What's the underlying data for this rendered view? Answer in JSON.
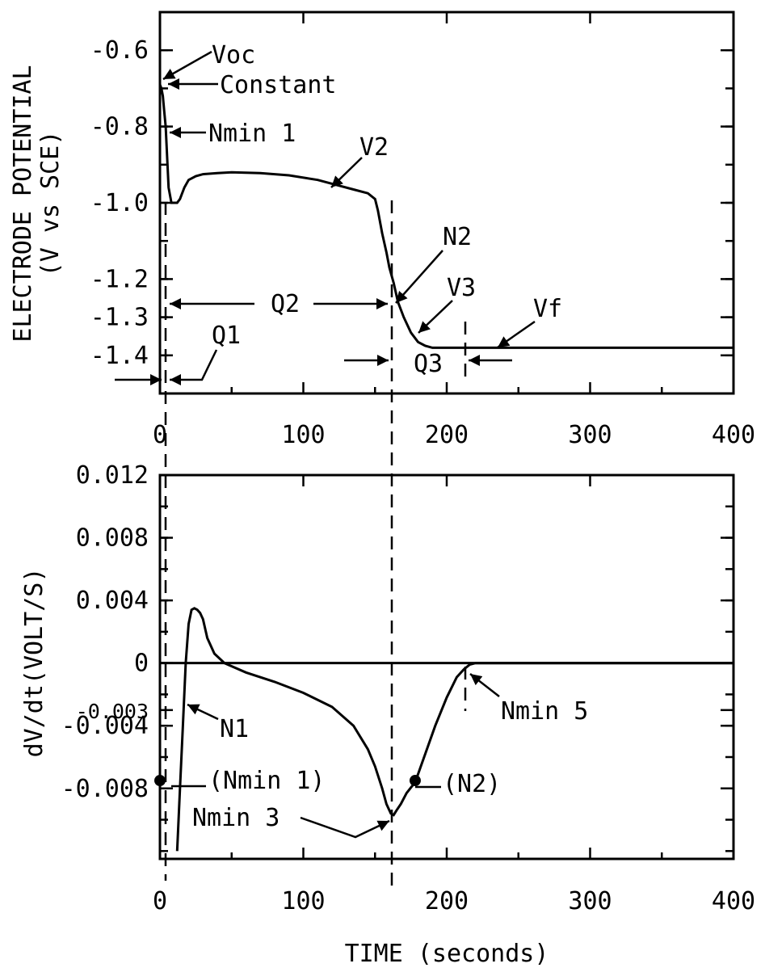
{
  "chart_data": [
    {
      "type": "line",
      "ylabel_line1": "ELECTRODE POTENTIAL",
      "ylabel_line2": "(V vs SCE)",
      "xlim": [
        0,
        400
      ],
      "ylim": [
        -1.5,
        -0.5
      ],
      "x_ticks": [
        "0",
        "100",
        "200",
        "300",
        "400"
      ],
      "y_ticks": [
        {
          "value": -0.6,
          "label": "-0.6"
        },
        {
          "value": -0.8,
          "label": "-0.8"
        },
        {
          "value": -1.0,
          "label": "-1.0"
        },
        {
          "value": -1.2,
          "label": "-1.2"
        },
        {
          "value": -1.3,
          "label": "-1.3"
        },
        {
          "value": -1.4,
          "label": "-1.4"
        }
      ],
      "series": [
        {
          "x": [
            0,
            1,
            2,
            3,
            4,
            5,
            6,
            8,
            10,
            12,
            14,
            17,
            20,
            25,
            30,
            40,
            50,
            70,
            90,
            110,
            125,
            135,
            145,
            150,
            152,
            155,
            158,
            160,
            163,
            166,
            170,
            175,
            180,
            185,
            190,
            200,
            220,
            260,
            300,
            350,
            400
          ],
          "y": [
            -0.69,
            -0.7,
            -0.72,
            -0.76,
            -0.8,
            -0.88,
            -0.96,
            -1.0,
            -1.0,
            -1.0,
            -0.99,
            -0.96,
            -0.94,
            -0.93,
            -0.925,
            -0.922,
            -0.92,
            -0.922,
            -0.928,
            -0.94,
            -0.955,
            -0.965,
            -0.975,
            -0.99,
            -1.02,
            -1.08,
            -1.13,
            -1.17,
            -1.21,
            -1.26,
            -1.3,
            -1.34,
            -1.365,
            -1.375,
            -1.38,
            -1.38,
            -1.38,
            -1.38,
            -1.38,
            -1.38,
            -1.38
          ]
        }
      ],
      "annotations": [
        {
          "text": "Voc",
          "x": 0,
          "y": -0.69
        },
        {
          "text": "Constant",
          "x": 2,
          "y": -0.7
        },
        {
          "text": "Nmin 1",
          "x": 5,
          "y": -0.82
        },
        {
          "text": "V2",
          "x": 115,
          "y": -0.95
        },
        {
          "text": "N2",
          "x": 162,
          "y": -1.21
        },
        {
          "text": "V3",
          "x": 178,
          "y": -1.35
        },
        {
          "text": "Vf",
          "x": 230,
          "y": -1.38
        },
        {
          "text": "Q1"
        },
        {
          "text": "Q2"
        },
        {
          "text": "Q3"
        }
      ]
    },
    {
      "type": "line",
      "xlabel": "TIME (seconds)",
      "ylabel": "dV/dt(VOLT/S)",
      "xlim": [
        0,
        400
      ],
      "ylim": [
        -0.0125,
        0.012
      ],
      "x_ticks": [
        "0",
        "100",
        "200",
        "300",
        "400"
      ],
      "y_ticks": [
        {
          "value": 0.012,
          "label": "0.012"
        },
        {
          "value": 0.008,
          "label": "0.008"
        },
        {
          "value": 0.004,
          "label": "0.004"
        },
        {
          "value": 0,
          "label": "0"
        },
        {
          "value": -0.003,
          "label": "-0.003",
          "small": true
        },
        {
          "value": -0.004,
          "label": "-0.004"
        },
        {
          "value": -0.008,
          "label": "-0.008"
        }
      ],
      "series": [
        {
          "x": [
            12,
            14,
            16,
            18,
            20,
            22,
            24,
            26,
            28,
            30,
            33,
            38,
            45,
            60,
            80,
            100,
            120,
            135,
            145,
            150,
            155,
            158,
            161,
            163,
            165,
            168,
            172,
            178,
            185,
            192,
            200,
            207,
            212,
            216,
            220,
            240,
            300,
            400
          ],
          "y": [
            -0.012,
            -0.008,
            -0.004,
            0.0,
            0.0025,
            0.0034,
            0.0035,
            0.0034,
            0.0032,
            0.0028,
            0.0016,
            0.0006,
            0.0,
            -0.0006,
            -0.0012,
            -0.0019,
            -0.0028,
            -0.004,
            -0.0055,
            -0.0066,
            -0.008,
            -0.009,
            -0.0096,
            -0.0097,
            -0.0094,
            -0.009,
            -0.0083,
            -0.0076,
            -0.0058,
            -0.004,
            -0.0022,
            -0.0009,
            -0.0004,
            -0.0001,
            0.0,
            0.0,
            0.0,
            0.0
          ]
        }
      ],
      "points": [
        {
          "x": 0,
          "y": -0.0075,
          "label": "(Nmin 1)"
        },
        {
          "x": 178,
          "y": -0.0075,
          "label": "(N2)"
        }
      ],
      "annotations": [
        {
          "text": "N1",
          "x": 15,
          "y": -0.0025
        },
        {
          "text": "Nmin 3",
          "x": 162,
          "y": -0.0097
        },
        {
          "text": "Nmin 5",
          "x": 216,
          "y": -0.0002
        }
      ]
    }
  ]
}
